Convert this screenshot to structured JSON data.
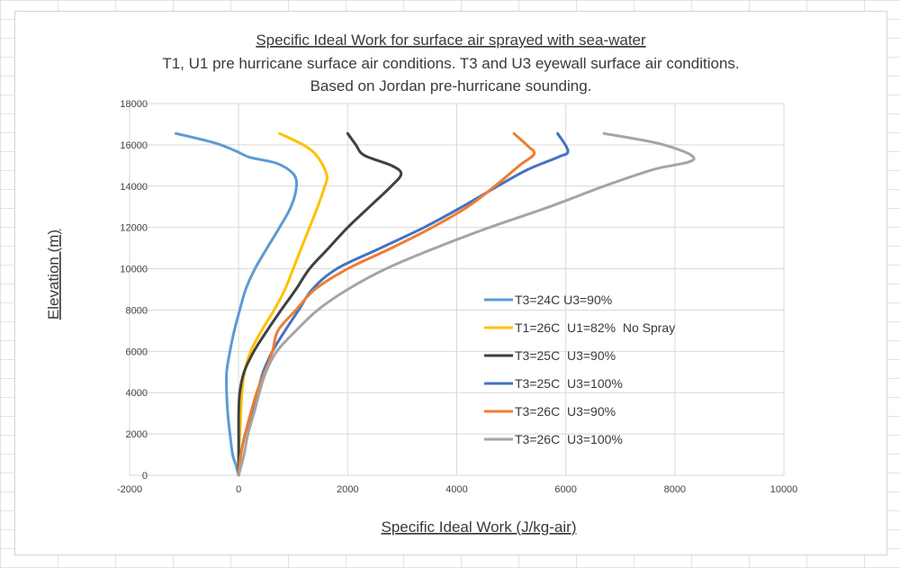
{
  "chart_data": {
    "type": "line",
    "title": "Specific Ideal Work for surface air sprayed with sea-water",
    "subtitle_lines": [
      "T1, U1 pre hurricane surface air conditions. T3 and U3 eyewall surface air conditions.",
      "Based on Jordan pre-hurricane sounding."
    ],
    "xlabel": "Specific Ideal Work (J/kg-air)",
    "ylabel": "Elevation (m)",
    "xlim": [
      -2000,
      10000
    ],
    "ylim": [
      0,
      18000
    ],
    "x_ticks": [
      "-2000",
      "0",
      "2000",
      "4000",
      "6000",
      "8000",
      "10000"
    ],
    "y_ticks": [
      "0",
      "2000",
      "4000",
      "6000",
      "8000",
      "10000",
      "12000",
      "14000",
      "16000",
      "18000"
    ],
    "grid": true,
    "legend_position": "right-center",
    "series": [
      {
        "name": "T3=24C U3=90%",
        "color": "#5b9bd5",
        "points": [
          [
            0,
            0
          ],
          [
            -50,
            500
          ],
          [
            -110,
            1000
          ],
          [
            -160,
            2000
          ],
          [
            -200,
            3000
          ],
          [
            -220,
            4000
          ],
          [
            -220,
            5000
          ],
          [
            -160,
            6000
          ],
          [
            -80,
            7000
          ],
          [
            20,
            8000
          ],
          [
            130,
            9000
          ],
          [
            300,
            10000
          ],
          [
            520,
            11000
          ],
          [
            750,
            12000
          ],
          [
            960,
            13000
          ],
          [
            1060,
            14000
          ],
          [
            1000,
            14600
          ],
          [
            700,
            15100
          ],
          [
            200,
            15400
          ],
          [
            -50,
            15700
          ],
          [
            -450,
            16100
          ],
          [
            -1150,
            16550
          ]
        ]
      },
      {
        "name": "T1=26C  U1=82%  No Spray",
        "color": "#ffc000",
        "points": [
          [
            0,
            0
          ],
          [
            0,
            1000
          ],
          [
            20,
            2000
          ],
          [
            40,
            3000
          ],
          [
            60,
            4000
          ],
          [
            110,
            5000
          ],
          [
            220,
            6000
          ],
          [
            420,
            7000
          ],
          [
            650,
            8000
          ],
          [
            850,
            9000
          ],
          [
            1000,
            10000
          ],
          [
            1150,
            11000
          ],
          [
            1300,
            12000
          ],
          [
            1450,
            13000
          ],
          [
            1580,
            14000
          ],
          [
            1620,
            14500
          ],
          [
            1480,
            15300
          ],
          [
            1250,
            15900
          ],
          [
            750,
            16550
          ]
        ]
      },
      {
        "name": "T3=25C  U3=90%",
        "color": "#404040",
        "points": [
          [
            0,
            0
          ],
          [
            0,
            1000
          ],
          [
            0,
            2000
          ],
          [
            0,
            3000
          ],
          [
            20,
            4000
          ],
          [
            100,
            5000
          ],
          [
            280,
            6000
          ],
          [
            520,
            7000
          ],
          [
            780,
            8000
          ],
          [
            1050,
            9000
          ],
          [
            1300,
            10000
          ],
          [
            1650,
            11000
          ],
          [
            2000,
            12000
          ],
          [
            2400,
            13000
          ],
          [
            2800,
            14000
          ],
          [
            2980,
            14600
          ],
          [
            2800,
            15000
          ],
          [
            2300,
            15500
          ],
          [
            2150,
            16000
          ],
          [
            2000,
            16550
          ]
        ]
      },
      {
        "name": "T3=25C  U3=100%",
        "color": "#4472c4",
        "points": [
          [
            0,
            0
          ],
          [
            40,
            1000
          ],
          [
            120,
            2000
          ],
          [
            250,
            3000
          ],
          [
            350,
            4000
          ],
          [
            450,
            5000
          ],
          [
            620,
            6000
          ],
          [
            850,
            7000
          ],
          [
            1100,
            8000
          ],
          [
            1350,
            9000
          ],
          [
            1800,
            10000
          ],
          [
            2600,
            11000
          ],
          [
            3400,
            12000
          ],
          [
            4100,
            13000
          ],
          [
            4750,
            14000
          ],
          [
            5300,
            14800
          ],
          [
            5850,
            15400
          ],
          [
            6040,
            15700
          ],
          [
            5850,
            16550
          ]
        ]
      },
      {
        "name": "T3=26C  U3=90%",
        "color": "#ed7d31",
        "points": [
          [
            0,
            0
          ],
          [
            40,
            1000
          ],
          [
            120,
            2000
          ],
          [
            220,
            3000
          ],
          [
            330,
            4000
          ],
          [
            480,
            5000
          ],
          [
            620,
            6000
          ],
          [
            720,
            7000
          ],
          [
            1050,
            8000
          ],
          [
            1400,
            9000
          ],
          [
            2000,
            10000
          ],
          [
            2800,
            11000
          ],
          [
            3550,
            12000
          ],
          [
            4200,
            13000
          ],
          [
            4700,
            14000
          ],
          [
            5150,
            15000
          ],
          [
            5420,
            15550
          ],
          [
            5300,
            15950
          ],
          [
            5050,
            16550
          ]
        ]
      },
      {
        "name": "T3=26C  U3=100%",
        "color": "#a5a5a5",
        "points": [
          [
            0,
            0
          ],
          [
            100,
            1000
          ],
          [
            170,
            2000
          ],
          [
            280,
            3000
          ],
          [
            380,
            4000
          ],
          [
            500,
            5000
          ],
          [
            700,
            6000
          ],
          [
            1050,
            7000
          ],
          [
            1450,
            8000
          ],
          [
            2000,
            9000
          ],
          [
            2700,
            10000
          ],
          [
            3600,
            11000
          ],
          [
            4600,
            12000
          ],
          [
            5700,
            13000
          ],
          [
            6700,
            14000
          ],
          [
            7600,
            14800
          ],
          [
            8350,
            15300
          ],
          [
            7800,
            16000
          ],
          [
            6700,
            16550
          ]
        ]
      }
    ]
  }
}
